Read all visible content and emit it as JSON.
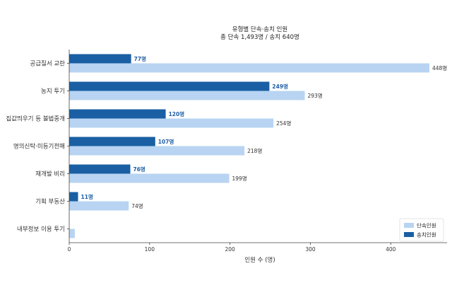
{
  "chart_data": {
    "type": "bar",
    "orientation": "horizontal",
    "title": "유형별 단속·송치 인원",
    "subtitle": "총 단속 1,493명 / 송치 640명",
    "xlabel": "인원 수 (명)",
    "ylabel": "",
    "xlim": [
      0,
      470
    ],
    "xticks": [
      0,
      100,
      200,
      300,
      400
    ],
    "categories": [
      "공급질서 교란",
      "농지 투기",
      "집값띄우기 등 불법중개",
      "명의신탁·미등기전매",
      "재개발 비리",
      "기획 부동산",
      "내부정보 이용 투기"
    ],
    "series": [
      {
        "name": "송치인원",
        "color": "#1a5fa3",
        "values": [
          77,
          249,
          120,
          107,
          76,
          11,
          0
        ],
        "labels": [
          "77명",
          "249명",
          "120명",
          "107명",
          "76명",
          "11명",
          ""
        ]
      },
      {
        "name": "단속인원",
        "color": "#b8d4f2",
        "values": [
          448,
          293,
          254,
          218,
          199,
          74,
          7
        ],
        "labels": [
          "448명",
          "293명",
          "254명",
          "218명",
          "199명",
          "74명",
          ""
        ]
      }
    ],
    "legend": {
      "position": "bottom-right",
      "items": [
        "단속인원",
        "송치인원"
      ]
    },
    "grid": false
  }
}
